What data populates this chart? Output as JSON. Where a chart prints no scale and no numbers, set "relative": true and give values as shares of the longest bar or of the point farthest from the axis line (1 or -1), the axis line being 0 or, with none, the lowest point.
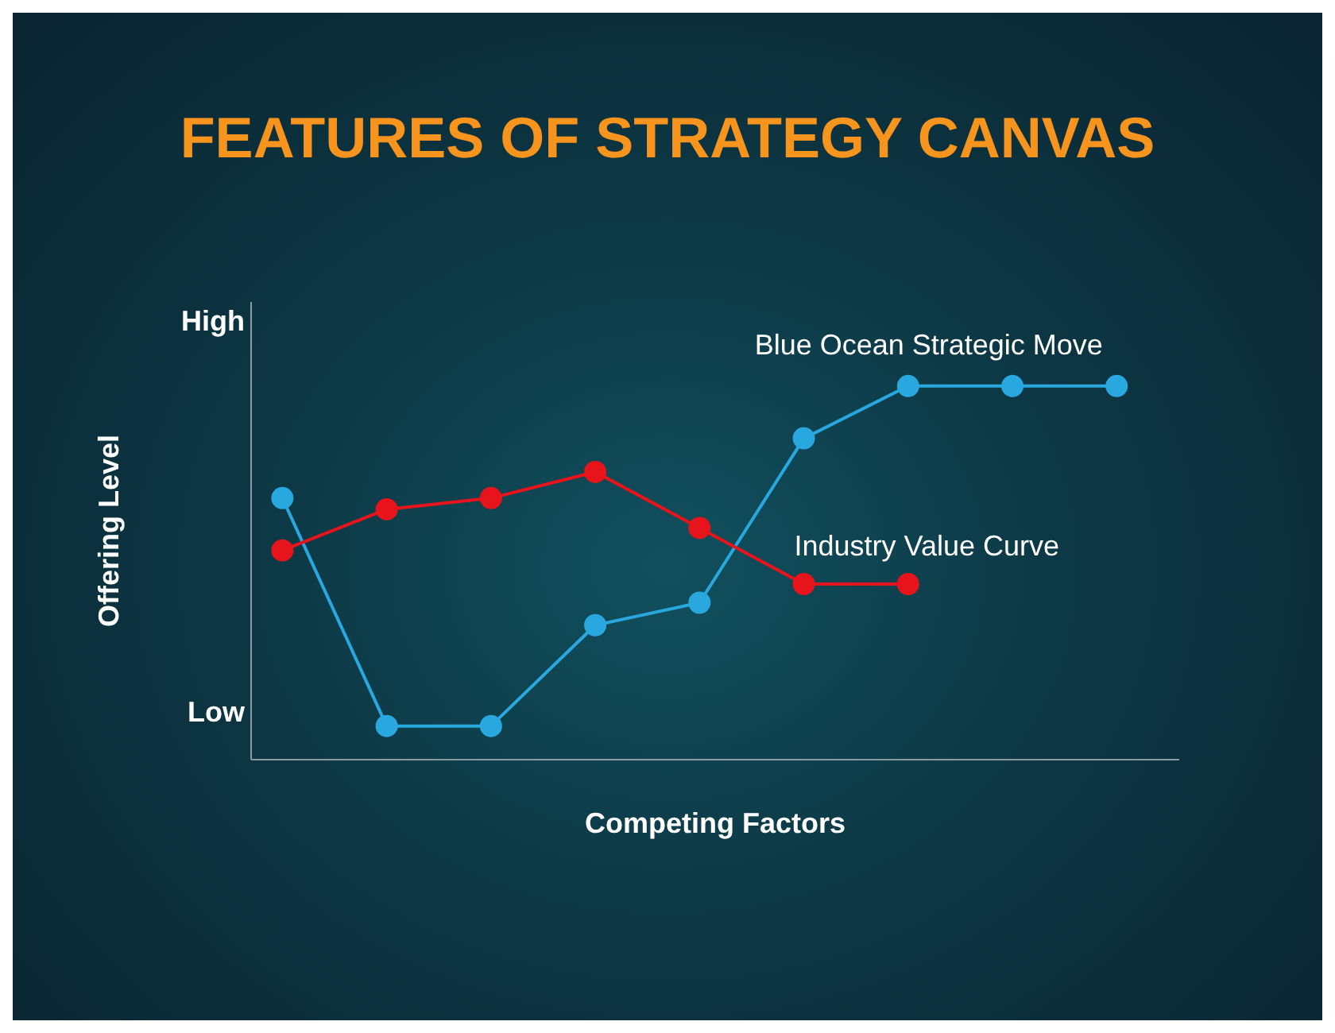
{
  "chart_data": {
    "type": "line",
    "title": "FEATURES OF STRATEGY CANVAS",
    "xlabel": "Competing Factors",
    "ylabel": "Offering Level",
    "annotations": [
      "High",
      "Low"
    ],
    "categories": [
      null,
      null,
      null,
      null,
      null,
      null,
      null,
      null,
      null
    ],
    "series": [
      {
        "name": "Blue Ocean Strategic Move",
        "color": "#29a8e0",
        "values": [
          0.7,
          0.09,
          0.09,
          0.36,
          0.42,
          0.86,
          1,
          1,
          1
        ]
      },
      {
        "name": "Industry Value Curve",
        "color": "#e8141b",
        "values": [
          0.56,
          0.67,
          0.7,
          0.77,
          0.62,
          0.47,
          0.47,
          null,
          null
        ]
      }
    ],
    "relative": true,
    "grid": false,
    "legend": false,
    "marker": "circle",
    "line_style": "solid"
  }
}
